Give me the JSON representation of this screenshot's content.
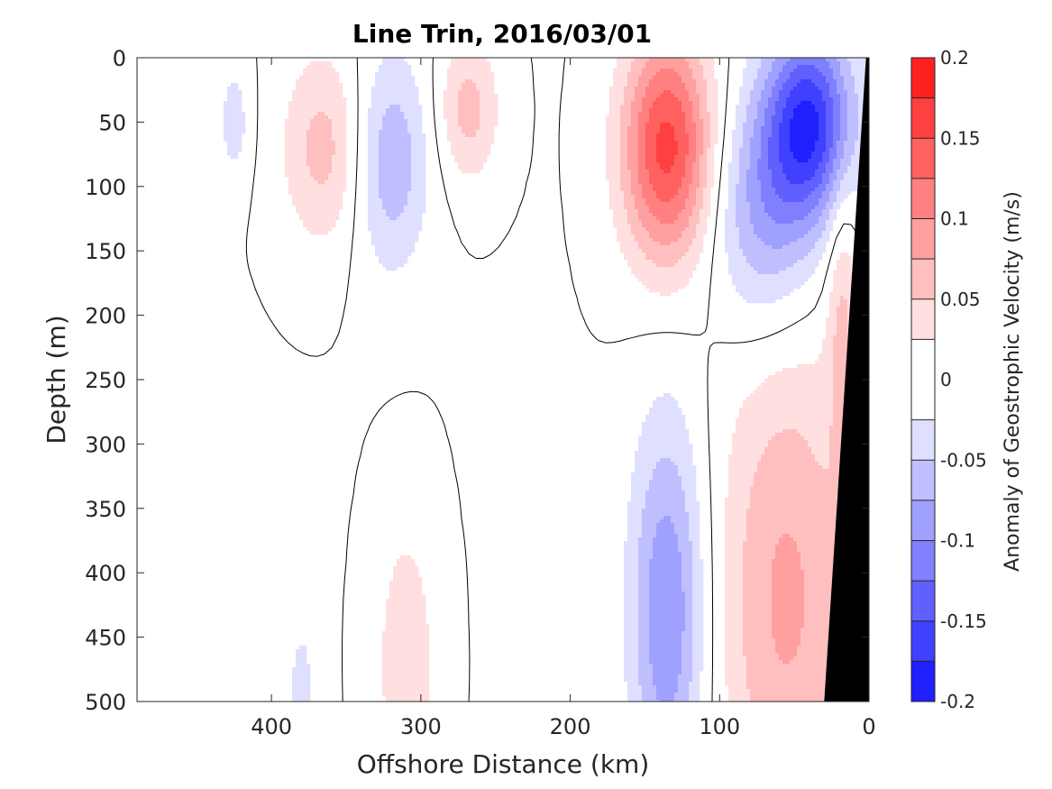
{
  "chart_data": {
    "type": "heatmap",
    "title": "Line Trin, 2016/03/01",
    "xlabel": "Offshore Distance (km)",
    "ylabel": "Depth (m)",
    "colorbar_label": "Anomaly of Geostrophic Velocity (m/s)",
    "xlim": [
      490,
      0
    ],
    "ylim": [
      0,
      500
    ],
    "x_reversed": true,
    "y_reversed": true,
    "xticks": [
      400,
      300,
      200,
      100,
      0
    ],
    "yticks": [
      0,
      50,
      100,
      150,
      200,
      250,
      300,
      350,
      400,
      450,
      500
    ],
    "colorbar": {
      "range": [
        -0.2,
        0.2
      ],
      "levels": [
        -0.2,
        -0.175,
        -0.15,
        -0.125,
        -0.1,
        -0.075,
        -0.05,
        -0.025,
        0.025,
        0.05,
        0.075,
        0.1,
        0.125,
        0.15,
        0.175,
        0.2
      ],
      "ticks": [
        0.2,
        0.15,
        0.1,
        0.05,
        0,
        -0.05,
        -0.1,
        -0.15,
        -0.2
      ],
      "tick_labels": [
        "0.2",
        "0.15",
        "0.1",
        "0.05",
        "0",
        "-0.05",
        "-0.1",
        "-0.15",
        "-0.2"
      ],
      "colors": [
        "#0000ff",
        "#2020ff",
        "#4040ff",
        "#6060ff",
        "#8080ff",
        "#a0a0ff",
        "#bfbfff",
        "#dfdfff",
        "#ffffff",
        "#ffdfdf",
        "#ffbfbf",
        "#ff9f9f",
        "#ff8080",
        "#ff6060",
        "#ff4040",
        "#ff2020",
        "#ff0000"
      ]
    },
    "features": [
      {
        "name": "pos1",
        "sign": 1,
        "x": 365,
        "y": 70,
        "sx": 28,
        "sy": 75,
        "amp": 0.06
      },
      {
        "name": "neg1",
        "sign": -1,
        "x": 320,
        "y": 80,
        "sx": 25,
        "sy": 85,
        "amp": 0.07
      },
      {
        "name": "pos2",
        "sign": 1,
        "x": 268,
        "y": 40,
        "sx": 20,
        "sy": 55,
        "amp": 0.06
      },
      {
        "name": "neg2",
        "sign": -1,
        "x": 425,
        "y": 50,
        "sx": 10,
        "sy": 45,
        "amp": 0.04
      },
      {
        "name": "pos3",
        "sign": 1,
        "x": 135,
        "y": 70,
        "sx": 30,
        "sy": 90,
        "amp": 0.16
      },
      {
        "name": "neg3",
        "sign": -1,
        "x": 40,
        "y": 50,
        "sx": 30,
        "sy": 75,
        "amp": 0.17
      },
      {
        "name": "neg4",
        "sign": -1,
        "x": 70,
        "y": 120,
        "sx": 35,
        "sy": 90,
        "amp": 0.08
      },
      {
        "name": "neg5",
        "sign": -1,
        "x": 135,
        "y": 430,
        "sx": 25,
        "sy": 150,
        "amp": 0.1
      },
      {
        "name": "pos4",
        "sign": 1,
        "x": 55,
        "y": 420,
        "sx": 45,
        "sy": 200,
        "amp": 0.08
      },
      {
        "name": "pos5",
        "sign": 1,
        "x": 310,
        "y": 470,
        "sx": 20,
        "sy": 110,
        "amp": 0.045
      },
      {
        "name": "neg6",
        "sign": -1,
        "x": 380,
        "y": 490,
        "sx": 10,
        "sy": 60,
        "amp": 0.035
      },
      {
        "name": "pos6",
        "sign": 1,
        "x": 18,
        "y": 200,
        "sx": 10,
        "sy": 120,
        "amp": 0.05
      }
    ],
    "bathymetry": [
      [
        0,
        0
      ],
      [
        2,
        0
      ],
      [
        30,
        500
      ],
      [
        0,
        500
      ]
    ]
  }
}
